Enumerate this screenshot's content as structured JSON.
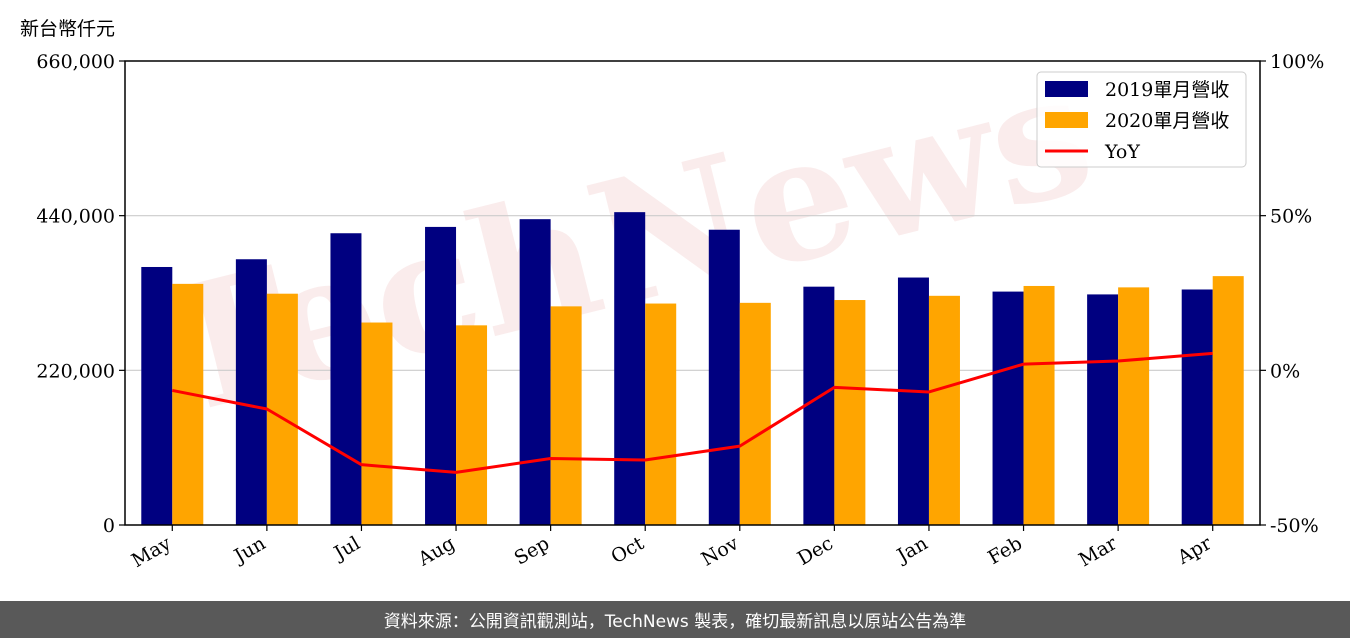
{
  "chart_data": {
    "type": "bar",
    "unit_label": "新台幣仟元",
    "categories": [
      "May",
      "Jun",
      "Jul",
      "Aug",
      "Sep",
      "Oct",
      "Nov",
      "Dec",
      "Jan",
      "Feb",
      "Mar",
      "Apr"
    ],
    "series": [
      {
        "name": "2019單月營收",
        "type": "bar",
        "color": "#000080",
        "values": [
          367000,
          378000,
          415000,
          424000,
          435000,
          445000,
          420000,
          339000,
          352000,
          332000,
          328000,
          335000
        ]
      },
      {
        "name": "2020單月營收",
        "type": "bar",
        "color": "#FFA500",
        "values": [
          343000,
          329000,
          288000,
          284000,
          311000,
          315000,
          316000,
          320000,
          326000,
          340000,
          338000,
          354000
        ]
      },
      {
        "name": "YoY",
        "type": "line",
        "color": "#FF0000",
        "axis": "right",
        "values": [
          -6.5,
          -12.5,
          -30.5,
          -33.0,
          -28.5,
          -29.0,
          -24.5,
          -5.5,
          -7.0,
          2.0,
          3.0,
          5.5
        ]
      }
    ],
    "y_left": {
      "ylim": [
        0,
        660000
      ],
      "ticks": [
        "0",
        "220,000",
        "440,000",
        "660,000"
      ]
    },
    "y_right": {
      "ylim": [
        -50,
        100
      ],
      "ticks": [
        "-50%",
        "0%",
        "50%",
        "100%"
      ]
    },
    "grid": "horizontal",
    "legend": "top-right",
    "watermark": "TechNews"
  },
  "footer": {
    "text": "資料來源：公開資訊觀測站，TechNews 製表，確切最新訊息以原站公告為準"
  }
}
